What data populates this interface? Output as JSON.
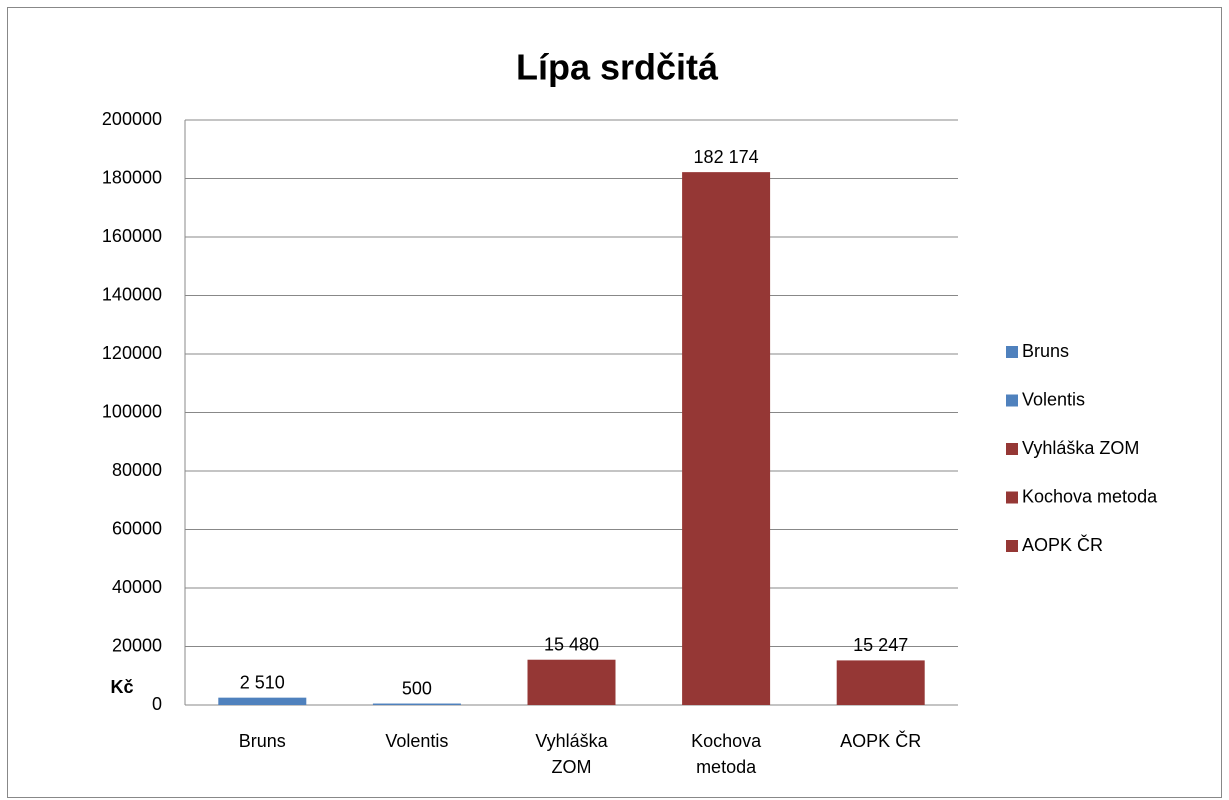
{
  "chart_data": {
    "type": "bar",
    "title": "Lípa srdčitá",
    "y_label": "Kč",
    "categories": [
      "Bruns",
      "Volentis",
      "Vyhláška ZOM",
      "Kochova metoda",
      "AOPK ČR"
    ],
    "values": [
      2510,
      500,
      15480,
      182174,
      15247
    ],
    "value_labels": [
      "2 510",
      "500",
      "15 480",
      "182 174",
      "15 247"
    ],
    "colors": [
      "#4f81bd",
      "#4f81bd",
      "#953735",
      "#953735",
      "#953735"
    ],
    "ylim": [
      0,
      200000
    ],
    "yticks": [
      0,
      20000,
      40000,
      60000,
      80000,
      100000,
      120000,
      140000,
      160000,
      180000,
      200000
    ],
    "grid": true,
    "legend": "right"
  }
}
